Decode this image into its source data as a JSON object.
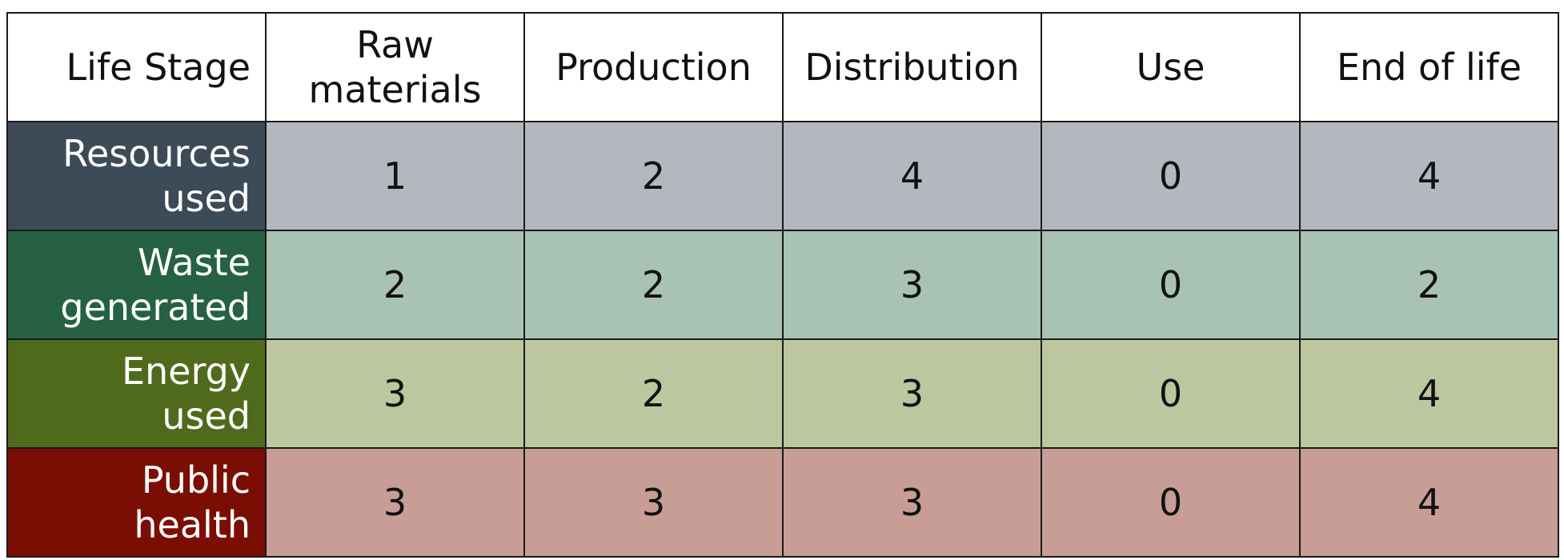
{
  "table": {
    "corner_label": "Life Stage",
    "columns": [
      "Raw\nmaterials",
      "Production",
      "Distribution",
      "Use",
      "End of life"
    ],
    "rows": [
      {
        "label": "Resources\nused",
        "header_color": "#3d4a58",
        "fill_color": "#b4b7bd",
        "values": [
          "1",
          "2",
          "4",
          "0",
          "4"
        ]
      },
      {
        "label": "Waste\ngenerated",
        "header_color": "#256142",
        "fill_color": "#a8c2b3",
        "values": [
          "2",
          "2",
          "3",
          "0",
          "2"
        ]
      },
      {
        "label": "Energy used",
        "header_color": "#506a1c",
        "fill_color": "#bcc79f",
        "values": [
          "3",
          "2",
          "3",
          "0",
          "4"
        ]
      },
      {
        "label": "Public\nhealth",
        "header_color": "#7b0e04",
        "fill_color": "#c79d96",
        "values": [
          "3",
          "3",
          "3",
          "0",
          "4"
        ]
      }
    ]
  }
}
